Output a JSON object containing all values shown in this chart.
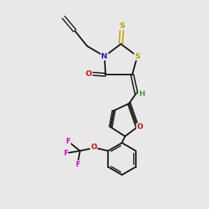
{
  "background_color": "#e8e8e8",
  "bond_color": "#1a1a1a",
  "N_color": "#2222cc",
  "O_color": "#cc1010",
  "S_color": "#b8a000",
  "F_color": "#cc00cc",
  "H_color": "#4a9a4a",
  "figsize": [
    3.0,
    3.0
  ],
  "dpi": 100,
  "xlim": [
    0,
    10
  ],
  "ylim": [
    0,
    10
  ]
}
